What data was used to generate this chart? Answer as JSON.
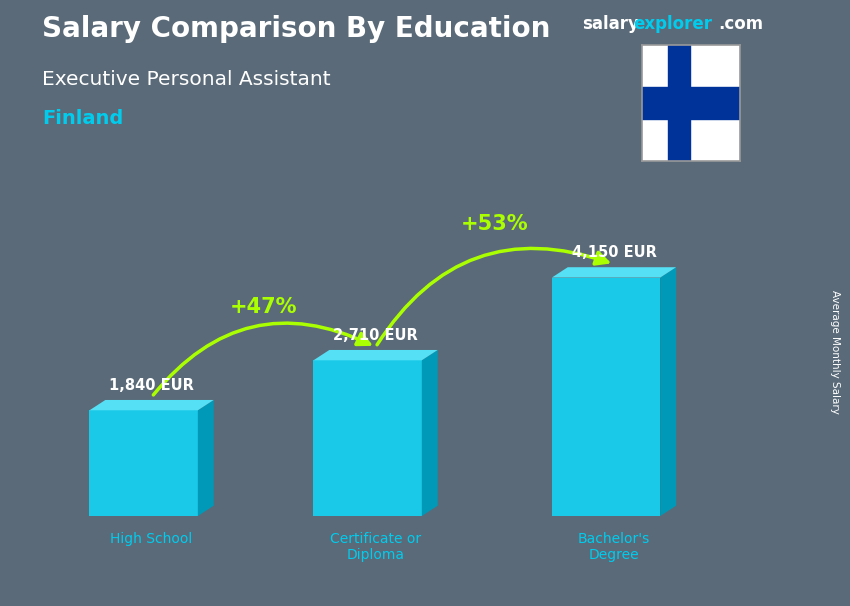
{
  "title_main": "Salary Comparison By Education",
  "title_sub": "Executive Personal Assistant",
  "title_country": "Finland",
  "watermark_salary": "salary",
  "watermark_explorer": "explorer",
  "watermark_com": ".com",
  "ylabel": "Average Monthly Salary",
  "categories": [
    "High School",
    "Certificate or\nDiploma",
    "Bachelor's\nDegree"
  ],
  "values": [
    1840,
    2710,
    4150
  ],
  "value_labels": [
    "1,840 EUR",
    "2,710 EUR",
    "4,150 EUR"
  ],
  "bar_color_front": "#1ac8e8",
  "bar_color_top": "#55e0f5",
  "bar_color_side": "#0099b8",
  "pct_labels": [
    "+47%",
    "+53%"
  ],
  "pct_color": "#aaff00",
  "arrow_color": "#aaff00",
  "bg_color": "#5a6a78",
  "text_color_white": "#ffffff",
  "text_color_cyan": "#00ccee",
  "flag_white": "#ffffff",
  "flag_blue": "#003399",
  "figsize": [
    8.5,
    6.06
  ],
  "dpi": 100
}
